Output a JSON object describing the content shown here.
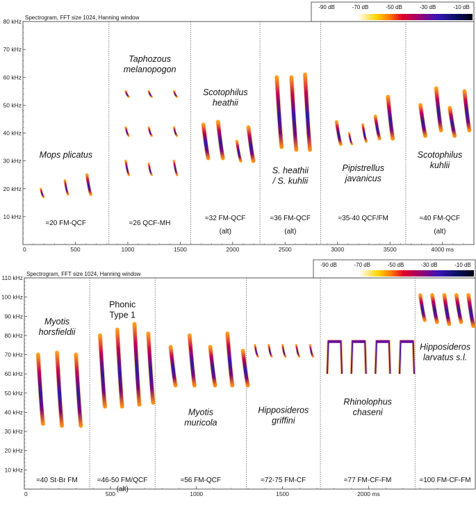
{
  "color_legend": {
    "labels": [
      "-90 dB",
      "-70 dB",
      "-50 dB",
      "-30 dB",
      "-10 dB"
    ]
  },
  "chart_data": [
    {
      "type": "spectrogram",
      "title": "Spectrogram, FFT size 1024, Hanning window",
      "x_unit": "ms",
      "xlim": [
        0,
        4300
      ],
      "ylim": [
        0,
        80
      ],
      "y_ticks": [
        "10 kHz",
        "20 kHz",
        "30 kHz",
        "40 kHz",
        "50 kHz",
        "60 kHz",
        "70 kHz",
        "80 kHz"
      ],
      "x_ticks": [
        "0",
        "500",
        "1000",
        "1500",
        "2000",
        "2500",
        "3000",
        "3500",
        "4000 ms"
      ],
      "x_tick_values": [
        0,
        500,
        1000,
        1500,
        2000,
        2500,
        3000,
        3500,
        4000
      ],
      "dividers": [
        820,
        1600,
        2260,
        2840,
        3650
      ],
      "panels": [
        {
          "species": [
            "Mops plicatus"
          ],
          "call_type": [
            "≈20 FM-QCF"
          ],
          "calls": [
            {
              "t": 170,
              "f_high": 20,
              "f_low": 17
            },
            {
              "t": 400,
              "f_high": 23,
              "f_low": 18
            },
            {
              "t": 610,
              "f_high": 25,
              "f_low": 18
            }
          ]
        },
        {
          "species": [
            "Taphozous",
            "melanopogon"
          ],
          "call_type": [
            "≈26 QCF-MH"
          ],
          "calls": [
            {
              "t": 980,
              "f_high": 55,
              "f_low": 53
            },
            {
              "t": 1200,
              "f_high": 55,
              "f_low": 53
            },
            {
              "t": 1440,
              "f_high": 55,
              "f_low": 53
            },
            {
              "t": 980,
              "f_high": 42,
              "f_low": 39
            },
            {
              "t": 1200,
              "f_high": 42,
              "f_low": 39
            },
            {
              "t": 1440,
              "f_high": 42,
              "f_low": 39
            },
            {
              "t": 980,
              "f_high": 30,
              "f_low": 25
            },
            {
              "t": 1200,
              "f_high": 29,
              "f_low": 25
            },
            {
              "t": 1440,
              "f_high": 30,
              "f_low": 25
            }
          ]
        },
        {
          "species": [
            "Scotophilus",
            "heathii"
          ],
          "call_type": [
            "≈32 FM-QCF",
            "(alt)"
          ],
          "calls": [
            {
              "t": 1720,
              "f_high": 43,
              "f_low": 31
            },
            {
              "t": 1860,
              "f_high": 44,
              "f_low": 31
            },
            {
              "t": 2040,
              "f_high": 37,
              "f_low": 30
            },
            {
              "t": 2150,
              "f_high": 42,
              "f_low": 30
            }
          ]
        },
        {
          "species": [
            "S. heathii",
            "/ S. kuhlii"
          ],
          "call_type": [
            "≈36 FM-QCF",
            "(alt)"
          ],
          "calls": [
            {
              "t": 2420,
              "f_high": 60,
              "f_low": 35
            },
            {
              "t": 2560,
              "f_high": 60,
              "f_low": 34
            },
            {
              "t": 2690,
              "f_high": 61,
              "f_low": 34
            }
          ]
        },
        {
          "species": [
            "Pipistrellus",
            "javanicus"
          ],
          "call_type": [
            "≈35-40 QCF/FM"
          ],
          "calls": [
            {
              "t": 2990,
              "f_high": 44,
              "f_low": 36
            },
            {
              "t": 3110,
              "f_high": 40,
              "f_low": 36
            },
            {
              "t": 3240,
              "f_high": 43,
              "f_low": 37
            },
            {
              "t": 3360,
              "f_high": 46,
              "f_low": 38
            },
            {
              "t": 3480,
              "f_high": 53,
              "f_low": 38
            }
          ]
        },
        {
          "species": [
            "Scotophilus",
            "kuhlii"
          ],
          "call_type": [
            "≈40 FM-QCF",
            "(alt)"
          ],
          "calls": [
            {
              "t": 3790,
              "f_high": 50,
              "f_low": 39
            },
            {
              "t": 3940,
              "f_high": 56,
              "f_low": 41
            },
            {
              "t": 4070,
              "f_high": 49,
              "f_low": 39
            },
            {
              "t": 4210,
              "f_high": 55,
              "f_low": 41
            }
          ]
        }
      ]
    },
    {
      "type": "spectrogram",
      "title": "Spectrogram, FFT size 1024, Hanning window",
      "x_unit": "ms",
      "xlim": [
        0,
        2620
      ],
      "ylim": [
        0,
        110
      ],
      "y_ticks": [
        "10 kHz",
        "20 kHz",
        "30 kHz",
        "40 kHz",
        "50 kHz",
        "60 kHz",
        "70 kHz",
        "80 kHz",
        "90 kHz",
        "100 kHz",
        "110 kHz"
      ],
      "x_ticks": [
        "0",
        "500",
        "1000",
        "1500",
        "2000 ms"
      ],
      "x_tick_values": [
        0,
        500,
        1000,
        1500,
        2000
      ],
      "dividers": [
        380,
        760,
        1290,
        1720,
        2270
      ],
      "panels": [
        {
          "species": [
            "Myotis",
            "horsfieldii"
          ],
          "call_type": [
            "≈40 St-Br FM"
          ],
          "calls": [
            {
              "t": 80,
              "f_high": 70,
              "f_low": 34
            },
            {
              "t": 190,
              "f_high": 71,
              "f_low": 33
            },
            {
              "t": 300,
              "f_high": 70,
              "f_low": 33
            }
          ]
        },
        {
          "species": [
            "Phonic",
            "Type 1"
          ],
          "species_italic": false,
          "call_type": [
            "≈46-50 FM/QCF",
            "(alt)"
          ],
          "calls": [
            {
              "t": 440,
              "f_high": 80,
              "f_low": 43
            },
            {
              "t": 540,
              "f_high": 83,
              "f_low": 43
            },
            {
              "t": 640,
              "f_high": 86,
              "f_low": 44
            },
            {
              "t": 720,
              "f_high": 81,
              "f_low": 45
            }
          ]
        },
        {
          "species": [
            "Myotis",
            "muricola"
          ],
          "call_type": [
            "≈56 FM-QCF"
          ],
          "calls": [
            {
              "t": 850,
              "f_high": 74,
              "f_low": 54
            },
            {
              "t": 960,
              "f_high": 80,
              "f_low": 54
            },
            {
              "t": 1080,
              "f_high": 74,
              "f_low": 54
            },
            {
              "t": 1180,
              "f_high": 81,
              "f_low": 54
            },
            {
              "t": 1270,
              "f_high": 72,
              "f_low": 54
            }
          ]
        },
        {
          "species": [
            "Hipposideros",
            "griffini"
          ],
          "call_type": [
            "≈72-75 FM-CF"
          ],
          "calls": [
            {
              "t": 1340,
              "f_high": 75,
              "f_low": 69
            },
            {
              "t": 1420,
              "f_high": 75,
              "f_low": 69
            },
            {
              "t": 1500,
              "f_high": 75,
              "f_low": 69
            },
            {
              "t": 1580,
              "f_high": 75,
              "f_low": 69
            },
            {
              "t": 1660,
              "f_high": 75,
              "f_low": 69
            }
          ]
        },
        {
          "species": [
            "Rhinolophus",
            "chaseni"
          ],
          "call_type": [
            "≈77 FM-CF-FM"
          ],
          "calls": [
            {
              "t": 1760,
              "f_high": 77,
              "f_low": 60,
              "dur": 85
            },
            {
              "t": 1900,
              "f_high": 77,
              "f_low": 60,
              "dur": 85
            },
            {
              "t": 2040,
              "f_high": 77,
              "f_low": 60,
              "dur": 85
            },
            {
              "t": 2180,
              "f_high": 77,
              "f_low": 60,
              "dur": 85
            }
          ]
        },
        {
          "species": [
            "Hipposideros",
            "larvatus s.l."
          ],
          "call_type": [
            "≈100 FM-CF-FM"
          ],
          "calls": [
            {
              "t": 2300,
              "f_high": 101,
              "f_low": 88
            },
            {
              "t": 2370,
              "f_high": 101,
              "f_low": 87
            },
            {
              "t": 2440,
              "f_high": 101,
              "f_low": 86
            },
            {
              "t": 2510,
              "f_high": 101,
              "f_low": 87
            },
            {
              "t": 2580,
              "f_high": 101,
              "f_low": 85
            }
          ]
        }
      ]
    }
  ]
}
